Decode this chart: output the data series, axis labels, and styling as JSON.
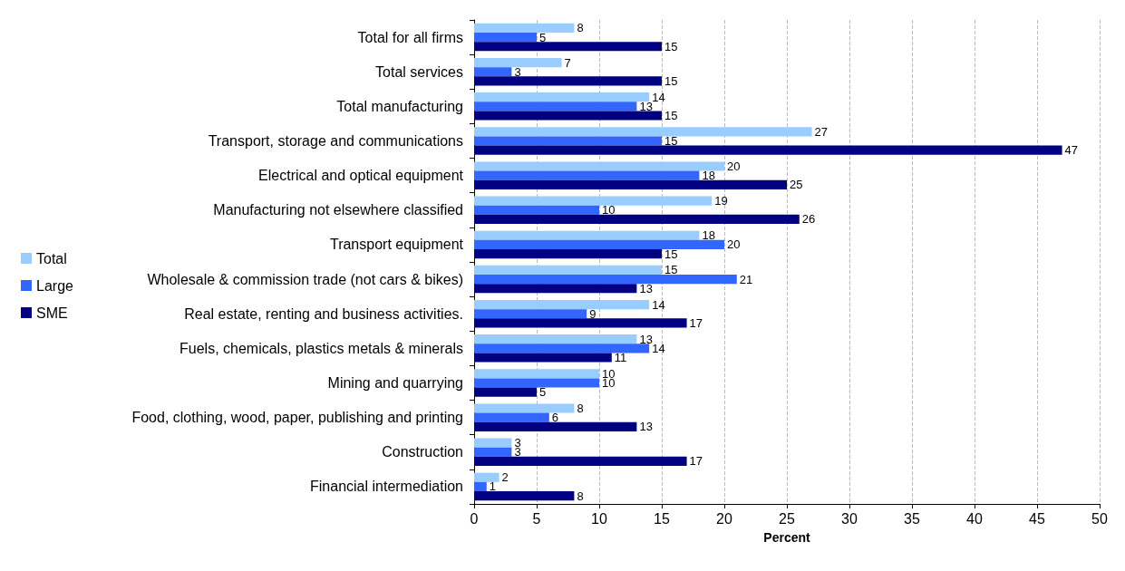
{
  "chart_data": {
    "type": "bar",
    "orientation": "horizontal",
    "xlabel": "Percent",
    "categories": [
      "Total for all firms",
      "Total services",
      "Total manufacturing",
      "Transport, storage and communications",
      "Electrical and optical equipment",
      "Manufacturing not elsewhere classified",
      "Transport equipment",
      "Wholesale & commission trade (not cars & bikes)",
      "Real estate, renting and business activities.",
      "Fuels, chemicals, plastics metals & minerals",
      "Mining and quarrying",
      "Food, clothing, wood, paper, publishing and printing",
      "Construction",
      "Financial intermediation"
    ],
    "series": [
      {
        "name": "Total",
        "color": "#99ccff",
        "values": [
          8,
          7,
          14,
          27,
          20,
          19,
          18,
          15,
          14,
          13,
          10,
          8,
          3,
          2
        ]
      },
      {
        "name": "Large",
        "color": "#3366ff",
        "values": [
          5,
          3,
          13,
          15,
          18,
          10,
          20,
          21,
          9,
          14,
          10,
          6,
          3,
          1
        ]
      },
      {
        "name": "SME",
        "color": "#000080",
        "values": [
          15,
          15,
          15,
          47,
          25,
          26,
          15,
          13,
          17,
          11,
          5,
          13,
          17,
          8
        ]
      }
    ],
    "xlim": [
      0,
      50
    ],
    "xticks": [
      0,
      5,
      10,
      15,
      20,
      25,
      30,
      35,
      40,
      45,
      50
    ],
    "grid": "x",
    "legend": "left",
    "data_labels": true
  }
}
